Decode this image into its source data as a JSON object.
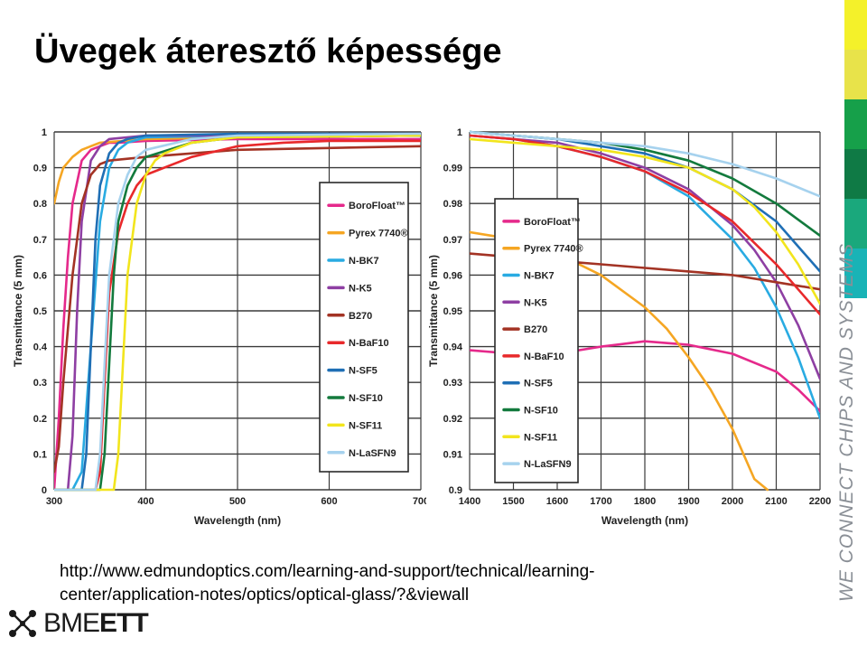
{
  "slide": {
    "title": "Üvegek áteresztő képessége",
    "url_line1": "http://www.edmundoptics.com/learning-and-support/technical/learning-",
    "url_line2": "center/application-notes/optics/optical-glass/?&viewall",
    "brand_vertical": "WE CONNECT CHIPS AND SYSTEMS",
    "logo_light": "BME",
    "logo_bold": "ETT",
    "strip_colors": [
      "#f4f12a",
      "#e8e34a",
      "#16a04a",
      "#0f7a45",
      "#1aa87c",
      "#19b3b6",
      "#ffffff"
    ]
  },
  "chart_data": [
    {
      "type": "line",
      "title": "",
      "xlabel": "Wavelength (nm)",
      "ylabel": "Transmittance (5 mm)",
      "xlim": [
        300,
        700
      ],
      "ylim": [
        0,
        1
      ],
      "xticks": [
        "300",
        "400",
        "500",
        "600",
        "700"
      ],
      "yticks": [
        "0",
        "0.1",
        "0.2",
        "0.3",
        "0.4",
        "0.5",
        "0.6",
        "0.7",
        "0.8",
        "0.9",
        "1"
      ],
      "grid": true,
      "legend_position": "right",
      "series": [
        {
          "name": "BoroFloat™",
          "color": "#e5298b",
          "x": [
            300,
            305,
            310,
            315,
            320,
            330,
            340,
            350,
            360,
            370,
            400,
            500,
            700
          ],
          "y": [
            0.0,
            0.2,
            0.45,
            0.65,
            0.8,
            0.92,
            0.95,
            0.96,
            0.97,
            0.97,
            0.975,
            0.98,
            0.98
          ]
        },
        {
          "name": "Pyrex 7740®",
          "color": "#f5a623",
          "x": [
            300,
            305,
            310,
            320,
            330,
            340,
            350,
            400,
            500,
            700
          ],
          "y": [
            0.8,
            0.86,
            0.9,
            0.93,
            0.95,
            0.96,
            0.97,
            0.98,
            0.985,
            0.99
          ]
        },
        {
          "name": "N-BK7",
          "color": "#29abe2",
          "x": [
            300,
            320,
            330,
            340,
            350,
            360,
            370,
            380,
            400,
            500,
            700
          ],
          "y": [
            0.0,
            0.0,
            0.05,
            0.4,
            0.75,
            0.9,
            0.95,
            0.97,
            0.985,
            0.99,
            0.99
          ]
        },
        {
          "name": "N-K5",
          "color": "#8e3fa3",
          "x": [
            300,
            315,
            320,
            325,
            330,
            340,
            350,
            360,
            400,
            500,
            700
          ],
          "y": [
            0.0,
            0.0,
            0.15,
            0.5,
            0.75,
            0.92,
            0.96,
            0.98,
            0.99,
            0.99,
            0.99
          ]
        },
        {
          "name": "B270",
          "color": "#a33324",
          "x": [
            300,
            305,
            310,
            320,
            330,
            340,
            350,
            360,
            400,
            500,
            700
          ],
          "y": [
            0.05,
            0.12,
            0.3,
            0.6,
            0.8,
            0.88,
            0.91,
            0.92,
            0.93,
            0.95,
            0.96
          ]
        },
        {
          "name": "N-BaF10",
          "color": "#e8292b",
          "x": [
            300,
            345,
            350,
            355,
            360,
            370,
            380,
            390,
            400,
            450,
            500,
            550,
            600,
            700
          ],
          "y": [
            0.0,
            0.0,
            0.05,
            0.3,
            0.55,
            0.72,
            0.8,
            0.85,
            0.88,
            0.93,
            0.96,
            0.97,
            0.975,
            0.975
          ]
        },
        {
          "name": "N-SF5",
          "color": "#1f6fb5",
          "x": [
            300,
            330,
            335,
            340,
            345,
            350,
            360,
            370,
            380,
            400,
            500,
            700
          ],
          "y": [
            0.0,
            0.0,
            0.1,
            0.4,
            0.7,
            0.85,
            0.94,
            0.97,
            0.98,
            0.99,
            0.995,
            0.995
          ]
        },
        {
          "name": "N-SF10",
          "color": "#137a3d",
          "x": [
            300,
            350,
            355,
            360,
            365,
            370,
            380,
            390,
            400,
            450,
            500,
            700
          ],
          "y": [
            0.0,
            0.0,
            0.1,
            0.35,
            0.6,
            0.75,
            0.85,
            0.9,
            0.93,
            0.97,
            0.985,
            0.99
          ]
        },
        {
          "name": "N-SF11",
          "color": "#f2e51d",
          "x": [
            300,
            365,
            370,
            375,
            380,
            390,
            400,
            410,
            420,
            450,
            500,
            700
          ],
          "y": [
            0.0,
            0.0,
            0.1,
            0.35,
            0.6,
            0.8,
            0.88,
            0.92,
            0.94,
            0.97,
            0.985,
            0.99
          ]
        },
        {
          "name": "N-LaSFN9",
          "color": "#a6d2ee",
          "x": [
            300,
            345,
            350,
            355,
            360,
            370,
            380,
            390,
            400,
            450,
            500,
            700
          ],
          "y": [
            0.0,
            0.0,
            0.1,
            0.35,
            0.6,
            0.8,
            0.88,
            0.93,
            0.95,
            0.98,
            0.99,
            0.995
          ]
        }
      ]
    },
    {
      "type": "line",
      "title": "",
      "xlabel": "Wavelength (nm)",
      "ylabel": "Transmittance (5 mm)",
      "xlim": [
        1400,
        2200
      ],
      "ylim": [
        0.9,
        1
      ],
      "xticks": [
        "1400",
        "1500",
        "1600",
        "1700",
        "1800",
        "1900",
        "2000",
        "2100",
        "2200"
      ],
      "yticks": [
        "0.9",
        "0.91",
        "0.92",
        "0.93",
        "0.94",
        "0.95",
        "0.96",
        "0.97",
        "0.98",
        "0.99",
        "1"
      ],
      "grid": true,
      "legend_position": "center-left",
      "series": [
        {
          "name": "BoroFloat™",
          "color": "#e5298b",
          "x": [
            1400,
            1500,
            1600,
            1700,
            1800,
            1900,
            2000,
            2100,
            2150,
            2200
          ],
          "y": [
            0.939,
            0.938,
            0.938,
            0.94,
            0.9415,
            0.9405,
            0.938,
            0.933,
            0.928,
            0.922
          ]
        },
        {
          "name": "Pyrex 7740®",
          "color": "#f5a623",
          "x": [
            1400,
            1500,
            1600,
            1700,
            1800,
            1850,
            1900,
            1950,
            2000,
            2050,
            2080
          ],
          "y": [
            0.972,
            0.97,
            0.966,
            0.96,
            0.951,
            0.945,
            0.937,
            0.928,
            0.917,
            0.903,
            0.9
          ]
        },
        {
          "name": "N-BK7",
          "color": "#29abe2",
          "x": [
            1400,
            1500,
            1600,
            1700,
            1800,
            1900,
            2000,
            2050,
            2100,
            2150,
            2200
          ],
          "y": [
            0.999,
            0.998,
            0.996,
            0.993,
            0.989,
            0.982,
            0.97,
            0.962,
            0.951,
            0.937,
            0.92
          ]
        },
        {
          "name": "N-K5",
          "color": "#8e3fa3",
          "x": [
            1400,
            1500,
            1600,
            1700,
            1800,
            1900,
            2000,
            2050,
            2100,
            2150,
            2200
          ],
          "y": [
            0.999,
            0.998,
            0.997,
            0.994,
            0.99,
            0.984,
            0.974,
            0.967,
            0.958,
            0.946,
            0.931
          ]
        },
        {
          "name": "B270",
          "color": "#a33324",
          "x": [
            1400,
            1500,
            1600,
            1700,
            1800,
            1900,
            2000,
            2100,
            2200
          ],
          "y": [
            0.966,
            0.965,
            0.964,
            0.963,
            0.962,
            0.961,
            0.96,
            0.958,
            0.956
          ]
        },
        {
          "name": "N-BaF10",
          "color": "#e8292b",
          "x": [
            1400,
            1500,
            1600,
            1700,
            1800,
            1900,
            2000,
            2050,
            2100,
            2150,
            2200
          ],
          "y": [
            0.999,
            0.998,
            0.996,
            0.993,
            0.989,
            0.983,
            0.975,
            0.969,
            0.963,
            0.956,
            0.949
          ]
        },
        {
          "name": "N-SF5",
          "color": "#1f6fb5",
          "x": [
            1400,
            1500,
            1600,
            1700,
            1800,
            1900,
            2000,
            2100,
            2200
          ],
          "y": [
            1.0,
            0.999,
            0.998,
            0.996,
            0.994,
            0.99,
            0.984,
            0.975,
            0.961
          ]
        },
        {
          "name": "N-SF10",
          "color": "#137a3d",
          "x": [
            1400,
            1500,
            1600,
            1700,
            1800,
            1900,
            2000,
            2100,
            2200
          ],
          "y": [
            1.0,
            0.999,
            0.998,
            0.997,
            0.995,
            0.992,
            0.987,
            0.98,
            0.971
          ]
        },
        {
          "name": "N-SF11",
          "color": "#f2e51d",
          "x": [
            1400,
            1500,
            1600,
            1700,
            1800,
            1900,
            2000,
            2050,
            2100,
            2150,
            2200
          ],
          "y": [
            0.998,
            0.997,
            0.996,
            0.995,
            0.993,
            0.99,
            0.984,
            0.979,
            0.972,
            0.963,
            0.952
          ]
        },
        {
          "name": "N-LaSFN9",
          "color": "#a6d2ee",
          "x": [
            1400,
            1500,
            1600,
            1700,
            1800,
            1900,
            2000,
            2100,
            2200
          ],
          "y": [
            1.0,
            0.999,
            0.998,
            0.997,
            0.996,
            0.994,
            0.991,
            0.987,
            0.982
          ]
        }
      ]
    }
  ]
}
